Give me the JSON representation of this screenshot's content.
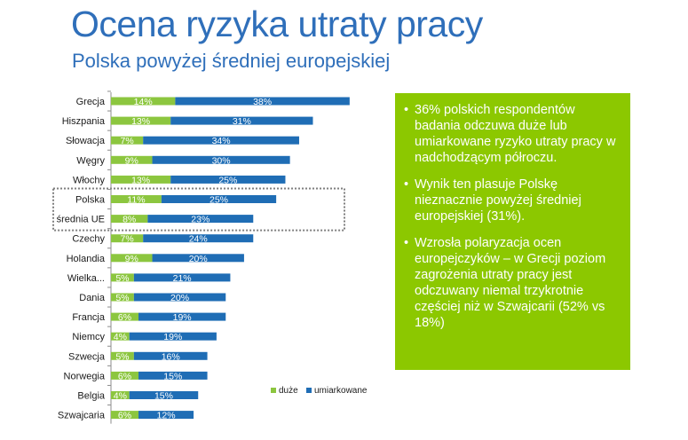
{
  "title": "Ocena ryzyka utraty pracy",
  "subtitle": "Polska powyżej średniej europejskiej",
  "colors": {
    "title": "#2f6fba",
    "duze": "#8cc63f",
    "umiarkowane": "#1f6db5",
    "info_box": "#8cc800",
    "highlight_border": "#7f7f7f"
  },
  "chart_data": {
    "type": "bar",
    "orientation": "horizontal",
    "stacked": true,
    "categories": [
      "Grecja",
      "Hiszpania",
      "Słowacja",
      "Węgry",
      "Włochy",
      "Polska",
      "średnia UE",
      "Czechy",
      "Holandia",
      "Wielka...",
      "Dania",
      "Francja",
      "Niemcy",
      "Szwecja",
      "Norwegia",
      "Belgia",
      "Szwajcaria"
    ],
    "series": [
      {
        "name": "duże",
        "values": [
          14,
          13,
          7,
          9,
          13,
          11,
          8,
          7,
          9,
          5,
          5,
          6,
          4,
          5,
          6,
          4,
          6
        ]
      },
      {
        "name": "umiarkowane",
        "values": [
          38,
          31,
          34,
          30,
          25,
          25,
          23,
          24,
          20,
          21,
          20,
          19,
          19,
          16,
          15,
          15,
          12
        ]
      }
    ],
    "value_suffix": "%",
    "highlighted": [
      "Polska",
      "średnia UE"
    ],
    "legend_position": "bottom-right",
    "grid": false
  },
  "info_box": {
    "bullet": "•",
    "items": [
      "36% polskich respondentów badania odczuwa duże lub umiarkowane ryzyko utraty pracy w nadchodzącym półroczu.",
      "Wynik ten plasuje Polskę nieznacznie powyżej średniej europejskiej (31%).",
      "Wzrosła polaryzacja ocen europejczyków – w Grecji poziom zagrożenia utraty pracy jest odczuwany niemal trzykrotnie częściej niż w Szwajcarii (52% vs 18%)"
    ]
  }
}
